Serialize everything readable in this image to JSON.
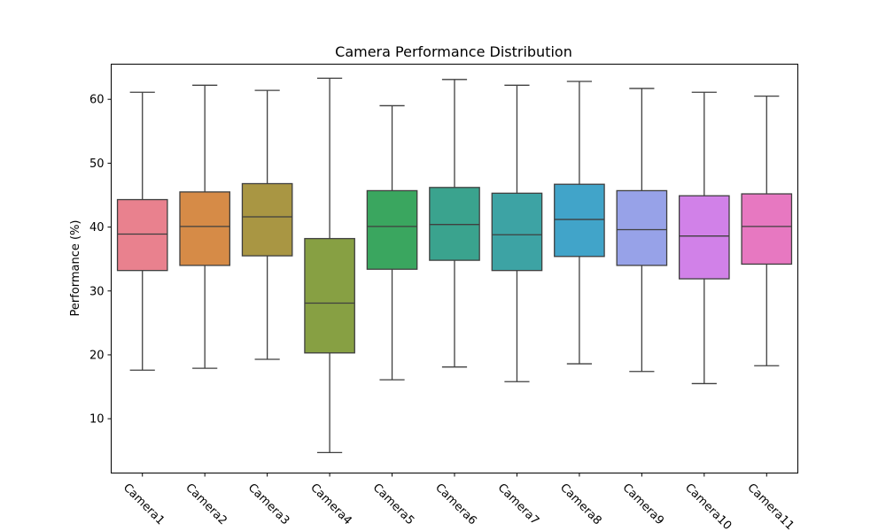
{
  "chart_data": {
    "type": "box",
    "title": "Camera Performance Distribution",
    "xlabel": "",
    "ylabel": "Performance (%)",
    "ylim": [
      1.5,
      65.5
    ],
    "yticks": [
      10,
      20,
      30,
      40,
      50,
      60
    ],
    "grid": false,
    "legend": "none",
    "categories": [
      "Camera1",
      "Camera2",
      "Camera3",
      "Camera4",
      "Camera5",
      "Camera6",
      "Camera7",
      "Camera8",
      "Camera9",
      "Camera10",
      "Camera11"
    ],
    "boxes": [
      {
        "name": "Camera1",
        "whisker_low": 17.6,
        "q1": 33.2,
        "median": 38.9,
        "q3": 44.3,
        "whisker_high": 61.1,
        "color": "#e9818e"
      },
      {
        "name": "Camera2",
        "whisker_low": 17.9,
        "q1": 34.0,
        "median": 40.1,
        "q3": 45.5,
        "whisker_high": 62.2,
        "color": "#d68b47"
      },
      {
        "name": "Camera3",
        "whisker_low": 19.3,
        "q1": 35.5,
        "median": 41.6,
        "q3": 46.8,
        "whisker_high": 61.4,
        "color": "#a99643"
      },
      {
        "name": "Camera4",
        "whisker_low": 4.7,
        "q1": 20.3,
        "median": 28.1,
        "q3": 38.2,
        "whisker_high": 63.3,
        "color": "#87a043"
      },
      {
        "name": "Camera5",
        "whisker_low": 16.1,
        "q1": 33.4,
        "median": 40.1,
        "q3": 45.7,
        "whisker_high": 59.0,
        "color": "#3aa65f"
      },
      {
        "name": "Camera6",
        "whisker_low": 18.1,
        "q1": 34.8,
        "median": 40.4,
        "q3": 46.2,
        "whisker_high": 63.1,
        "color": "#3aa38e"
      },
      {
        "name": "Camera7",
        "whisker_low": 15.8,
        "q1": 33.2,
        "median": 38.8,
        "q3": 45.3,
        "whisker_high": 62.2,
        "color": "#3da3a4"
      },
      {
        "name": "Camera8",
        "whisker_low": 18.6,
        "q1": 35.4,
        "median": 41.2,
        "q3": 46.7,
        "whisker_high": 62.8,
        "color": "#41a4c9"
      },
      {
        "name": "Camera9",
        "whisker_low": 17.4,
        "q1": 34.0,
        "median": 39.6,
        "q3": 45.7,
        "whisker_high": 61.7,
        "color": "#97a2e8"
      },
      {
        "name": "Camera10",
        "whisker_low": 15.5,
        "q1": 31.9,
        "median": 38.6,
        "q3": 44.9,
        "whisker_high": 61.1,
        "color": "#d181e8"
      },
      {
        "name": "Camera11",
        "whisker_low": 18.3,
        "q1": 34.2,
        "median": 40.1,
        "q3": 45.2,
        "whisker_high": 60.5,
        "color": "#e778c1"
      }
    ]
  }
}
